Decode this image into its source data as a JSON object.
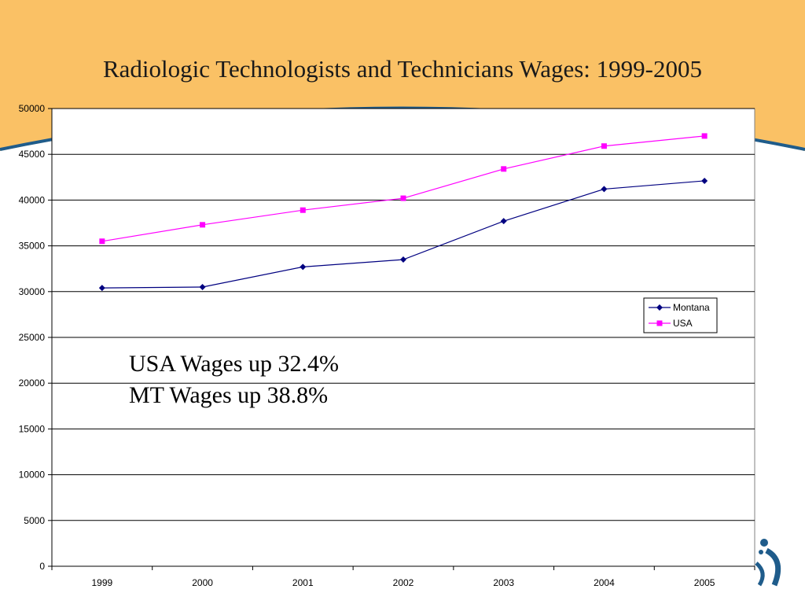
{
  "slide": {
    "background_color": "#FAC165",
    "arc_color": "#1F5C8B",
    "logo": "stylized-figures-logo"
  },
  "chart_data": {
    "type": "line",
    "title": "Radiologic Technologists and Technicians Wages: 1999-2005",
    "xlabel": "",
    "ylabel": "",
    "categories": [
      "1999",
      "2000",
      "2001",
      "2002",
      "2003",
      "2004",
      "2005"
    ],
    "ylim": [
      0,
      50000
    ],
    "yticks": [
      "0",
      "5000",
      "10000",
      "15000",
      "20000",
      "25000",
      "30000",
      "35000",
      "40000",
      "45000",
      "50000"
    ],
    "grid": true,
    "legend_position": "right",
    "series": [
      {
        "name": "Montana",
        "color": "#000080",
        "marker": "diamond",
        "values": [
          30400,
          30500,
          32700,
          33500,
          37700,
          41200,
          42100
        ]
      },
      {
        "name": "USA",
        "color": "#FF00FF",
        "marker": "square",
        "values": [
          35500,
          37300,
          38900,
          40200,
          43400,
          45900,
          47000
        ]
      }
    ],
    "annotations": [
      "USA Wages up 32.4%",
      "MT Wages up 38.8%"
    ]
  }
}
